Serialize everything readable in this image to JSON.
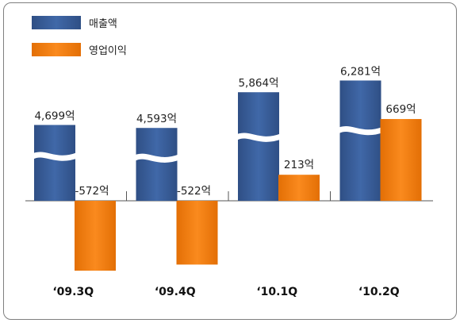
{
  "chart_data": {
    "type": "bar",
    "categories": [
      "‘09.3Q",
      "‘09.4Q",
      "‘10.1Q",
      "‘10.2Q"
    ],
    "series": [
      {
        "name": "매출액",
        "values": [
          4699,
          4593,
          5864,
          6281
        ],
        "labels": [
          "4,699억",
          "4,593억",
          "5,864억",
          "6,281억"
        ],
        "color": "#3b5e9a",
        "broken_axis": true
      },
      {
        "name": "영업이익",
        "values": [
          -572,
          -522,
          213,
          669
        ],
        "labels": [
          "-572억",
          "-522억",
          "213억",
          "669억"
        ],
        "color": "#f07d10"
      }
    ],
    "title": "",
    "xlabel": "",
    "ylabel": "",
    "legend_position": "top-left",
    "grid": false
  }
}
